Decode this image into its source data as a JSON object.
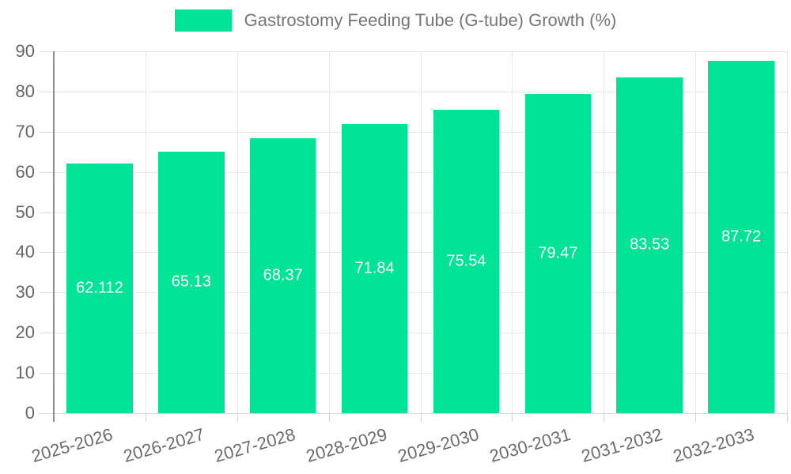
{
  "chart_data": {
    "type": "bar",
    "title": "Gastrostomy Feeding Tube (G-tube) Growth (%)",
    "categories": [
      "2025-2026",
      "2026-2027",
      "2027-2028",
      "2028-2029",
      "2029-2030",
      "2030-2031",
      "2031-2032",
      "2032-2033"
    ],
    "values": [
      62.112,
      65.13,
      68.37,
      71.84,
      75.54,
      79.47,
      83.53,
      87.72
    ],
    "value_labels": [
      "62.112",
      "65.13",
      "68.37",
      "71.84",
      "75.54",
      "79.47",
      "83.53",
      "87.72"
    ],
    "xlabel": "",
    "ylabel": "",
    "ylim": [
      0,
      90
    ],
    "yticks": [
      0,
      10,
      20,
      30,
      40,
      50,
      60,
      70,
      80,
      90
    ],
    "grid": true,
    "legend_position": "top",
    "colors": {
      "bar": "#00E396",
      "bar_value_text": "#ffffff",
      "axis_text": "#666666",
      "legend_text": "#757575",
      "gridline": "#e7e7e7",
      "y_axis_line": "#8e8e8e"
    }
  }
}
